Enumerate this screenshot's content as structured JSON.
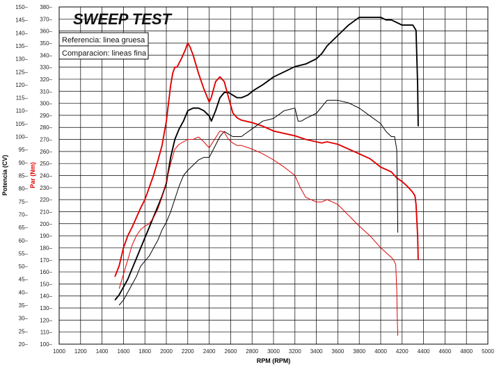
{
  "chart_data": {
    "type": "line",
    "title": "SWEEP TEST",
    "xlabel": "RPM (RPM)",
    "ylabel_left": "Potencia (CV)",
    "ylabel_right": "Par (Nm)",
    "xlim": [
      1000,
      5000
    ],
    "xticks": [
      1000,
      1200,
      1400,
      1600,
      1800,
      2000,
      2200,
      2400,
      2600,
      2800,
      3000,
      3200,
      3400,
      3600,
      3800,
      4000,
      4200,
      4400,
      4600,
      4800,
      5000
    ],
    "ylim_power": [
      20,
      150
    ],
    "yticks_power": [
      20,
      25,
      30,
      35,
      40,
      45,
      50,
      55,
      60,
      65,
      70,
      75,
      80,
      85,
      90,
      95,
      100,
      105,
      110,
      115,
      120,
      125,
      130,
      135,
      140,
      145,
      150
    ],
    "ylim_torque": [
      100,
      380
    ],
    "yticks_torque": [
      100,
      110,
      120,
      130,
      140,
      150,
      160,
      170,
      180,
      190,
      200,
      210,
      220,
      230,
      240,
      250,
      260,
      270,
      280,
      290,
      300,
      310,
      320,
      330,
      340,
      350,
      360,
      370,
      380
    ],
    "grid": true,
    "legend": {
      "position": "top-left",
      "entries": [
        "Referencia: linea gruesa",
        "Comparacion: lineas fina"
      ]
    },
    "colors": {
      "power": "#000000",
      "torque": "#e00000"
    },
    "series": [
      {
        "quantity": "power",
        "axis": "power",
        "variant": "thick",
        "x": [
          1520,
          1560,
          1600,
          1640,
          1680,
          1720,
          1760,
          1800,
          1840,
          1880,
          1920,
          1960,
          2000,
          2040,
          2080,
          2120,
          2160,
          2200,
          2250,
          2300,
          2350,
          2400,
          2420,
          2460,
          2500,
          2540,
          2580,
          2620,
          2660,
          2700,
          2760,
          2820,
          2900,
          3000,
          3100,
          3200,
          3300,
          3400,
          3450,
          3500,
          3600,
          3700,
          3800,
          3900,
          4000,
          4050,
          4100,
          4150,
          4200,
          4250,
          4300,
          4330,
          4345,
          4350
        ],
        "y": [
          37,
          39,
          42,
          45,
          49,
          53,
          57,
          61,
          65,
          69,
          73,
          77,
          82,
          92,
          99,
          103,
          106,
          110,
          111,
          111,
          110,
          108,
          106,
          110,
          115,
          117,
          117,
          116,
          115,
          115,
          116,
          118,
          120,
          123,
          125,
          127,
          128,
          130,
          132,
          135,
          139,
          143,
          146,
          146,
          146,
          145,
          145,
          144,
          143,
          143,
          143,
          141,
          120,
          104
        ]
      },
      {
        "quantity": "torque",
        "axis": "torque",
        "variant": "thick",
        "x": [
          1520,
          1560,
          1600,
          1640,
          1680,
          1720,
          1760,
          1800,
          1840,
          1880,
          1920,
          1960,
          2000,
          2020,
          2040,
          2060,
          2080,
          2100,
          2140,
          2180,
          2200,
          2220,
          2250,
          2300,
          2350,
          2400,
          2420,
          2460,
          2500,
          2540,
          2580,
          2620,
          2660,
          2700,
          2800,
          2900,
          3000,
          3100,
          3200,
          3300,
          3400,
          3450,
          3500,
          3600,
          3700,
          3800,
          3900,
          4000,
          4100,
          4150,
          4200,
          4250,
          4300,
          4320,
          4330,
          4345,
          4350
        ],
        "y": [
          156,
          165,
          180,
          190,
          197,
          205,
          213,
          220,
          230,
          240,
          252,
          265,
          285,
          300,
          315,
          325,
          330,
          330,
          337,
          345,
          350,
          347,
          340,
          325,
          312,
          301,
          305,
          318,
          322,
          318,
          305,
          292,
          288,
          286,
          284,
          281,
          277,
          275,
          273,
          270,
          268,
          267,
          268,
          266,
          262,
          258,
          254,
          247,
          243,
          238,
          235,
          231,
          226,
          223,
          216,
          190,
          170
        ]
      },
      {
        "quantity": "power",
        "axis": "power",
        "variant": "thin",
        "x": [
          1560,
          1600,
          1640,
          1680,
          1720,
          1760,
          1800,
          1840,
          1880,
          1920,
          1960,
          2000,
          2040,
          2080,
          2120,
          2160,
          2200,
          2250,
          2300,
          2350,
          2400,
          2450,
          2500,
          2540,
          2580,
          2620,
          2660,
          2700,
          2800,
          2900,
          3000,
          3100,
          3200,
          3230,
          3260,
          3300,
          3400,
          3500,
          3600,
          3700,
          3800,
          3900,
          4000,
          4050,
          4100,
          4130,
          4150,
          4155,
          4160
        ],
        "y": [
          35,
          37,
          40,
          43,
          46,
          50,
          52,
          54,
          57,
          60,
          64,
          67,
          71,
          76,
          81,
          85,
          87,
          89,
          91,
          92,
          92,
          96,
          100,
          102,
          101,
          100,
          100,
          100,
          103,
          106,
          107,
          110,
          111,
          106,
          106,
          107,
          109,
          114,
          114,
          113,
          111,
          108,
          105,
          102,
          100,
          100,
          95,
          80,
          63
        ]
      },
      {
        "quantity": "torque",
        "axis": "torque",
        "variant": "thin",
        "x": [
          1560,
          1600,
          1640,
          1680,
          1720,
          1760,
          1800,
          1840,
          1880,
          1920,
          1960,
          2000,
          2040,
          2080,
          2120,
          2160,
          2200,
          2250,
          2300,
          2350,
          2400,
          2450,
          2500,
          2540,
          2580,
          2620,
          2660,
          2700,
          2800,
          2900,
          3000,
          3100,
          3200,
          3250,
          3300,
          3400,
          3450,
          3500,
          3600,
          3700,
          3800,
          3900,
          4000,
          4050,
          4100,
          4120,
          4140,
          4150,
          4155,
          4160
        ],
        "y": [
          146,
          158,
          170,
          182,
          190,
          195,
          198,
          200,
          205,
          212,
          222,
          235,
          250,
          262,
          266,
          268,
          270,
          270,
          272,
          268,
          263,
          270,
          277,
          276,
          270,
          267,
          265,
          265,
          262,
          258,
          253,
          247,
          240,
          230,
          222,
          218,
          218,
          220,
          216,
          207,
          198,
          190,
          180,
          176,
          172,
          170,
          166,
          145,
          120,
          107
        ]
      }
    ]
  }
}
